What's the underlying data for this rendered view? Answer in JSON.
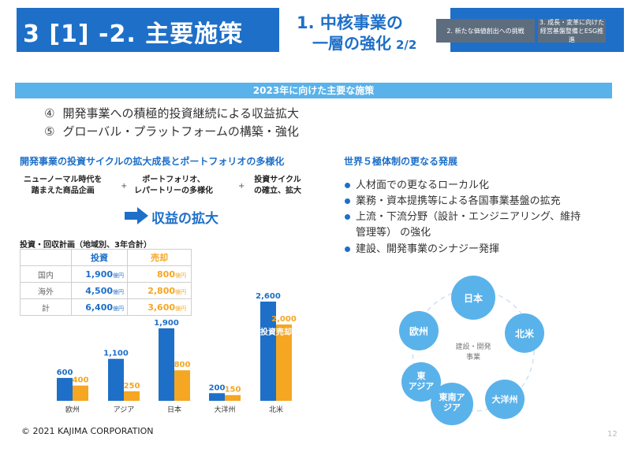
{
  "header": {
    "section": "3 [1] -2. 主要施策",
    "subtitle_line1": "1. 中核事業の",
    "subtitle_line2": "一層の強化",
    "subtitle_page": "2/2",
    "tab2": "2. 新たな価値創出への挑戦",
    "tab3": "3. 成長・変革に向けた経営基盤整備とESG推進"
  },
  "banner": "2023年に向けた主要な施策",
  "main_items": [
    {
      "num": "④",
      "text": "開発事業への積極的投資継続による収益拡大"
    },
    {
      "num": "⑤",
      "text": "グローバル・プラットフォームの構築・強化"
    }
  ],
  "left": {
    "heading": "開発事業の投資サイクルの拡大成長とポートフォリオの多様化",
    "cycle": [
      {
        "line1": "ニューノーマル時代を",
        "line2": "踏まえた商品企画"
      },
      {
        "line1": "ポートフォリオ、",
        "line2": "レパートリーの多様化"
      },
      {
        "line1": "投資サイクル",
        "line2": "の確立、拡大"
      }
    ],
    "plus": "+",
    "result": "収益の拡大",
    "table_title": "投資・回収計画（地域別、3年合計）",
    "table": {
      "headers": [
        "投資",
        "売却"
      ],
      "unit": "億円",
      "rows": [
        {
          "label": "国内",
          "invest": "1,900",
          "sell": "800"
        },
        {
          "label": "海外",
          "invest": "4,500",
          "sell": "2,800"
        },
        {
          "label": "計",
          "invest": "6,400",
          "sell": "3,600"
        }
      ]
    }
  },
  "chart_data": {
    "type": "bar",
    "categories": [
      "欧州",
      "アジア",
      "日本",
      "大洋州",
      "北米"
    ],
    "series": [
      {
        "name": "投資",
        "values": [
          600,
          1100,
          1900,
          200,
          2600
        ]
      },
      {
        "name": "売却",
        "values": [
          400,
          250,
          800,
          150,
          2000
        ]
      }
    ],
    "value_labels": {
      "投資": [
        "600",
        "1,100",
        "1,900",
        "200",
        "2,600"
      ],
      "売却": [
        "400",
        "250",
        "800",
        "150",
        "2,000"
      ]
    },
    "colors": {
      "投資": "#1e6fc8",
      "売却": "#f5a623"
    },
    "ylim": [
      0,
      2600
    ],
    "title": "",
    "xlabel": "",
    "ylabel": ""
  },
  "right": {
    "heading": "世界５極体制の更なる発展",
    "bullets": [
      "人材面での更なるローカル化",
      "業務・資本提携等による各国事業基盤の拡充",
      "上流・下流分野（設計・エンジニアリング、維持",
      "管理等） の強化",
      "建設、開発事業のシナジー発揮"
    ],
    "diagram": {
      "center_line1": "建設・開発",
      "center_line2": "事業",
      "nodes": [
        "日本",
        "北米",
        "大洋州",
        "東南アジア",
        "東アジア",
        "欧州"
      ]
    }
  },
  "footer": "© 2021 KAJIMA CORPORATION",
  "page_number": "12"
}
